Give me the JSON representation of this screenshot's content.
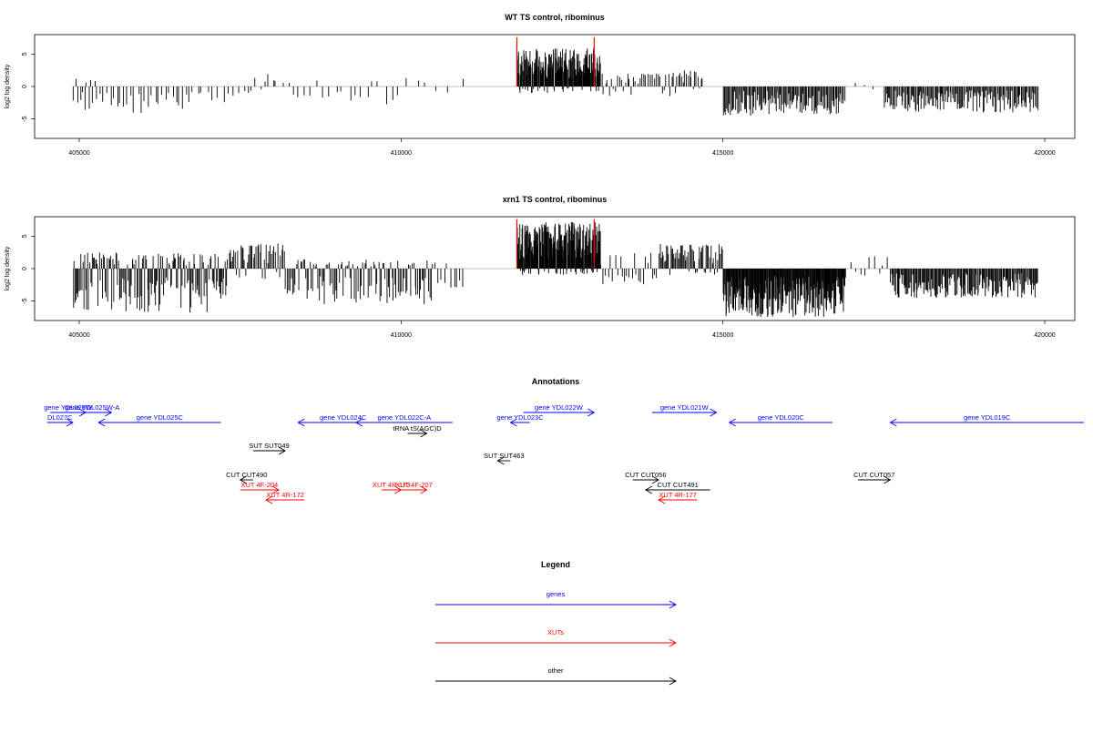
{
  "chart_data": [
    {
      "type": "bar",
      "title": "WT TS control, ribominus",
      "xlabel": "",
      "ylabel": "log2 log density",
      "xlim": [
        404500,
        420900
      ],
      "ylim": [
        -8,
        8
      ],
      "xticks": [
        405000,
        410000,
        415000,
        420000
      ],
      "yticks": [
        5,
        0,
        -5
      ],
      "xtick_labels": [
        "405000",
        "410000",
        "415000",
        "420000"
      ],
      "ytick_labels": [
        "5",
        "0",
        "-5"
      ],
      "markers": [
        411800,
        413000
      ],
      "marker_color": "#ff0000",
      "segments": [
        {
          "x0": 404900,
          "x1": 405300,
          "ymin": -4.0,
          "ymax": 1.2,
          "n": 12,
          "seed": 3
        },
        {
          "x0": 405300,
          "x1": 406800,
          "ymin": -4.2,
          "ymax": 0.0,
          "n": 28,
          "seed": 7
        },
        {
          "x0": 406800,
          "x1": 407600,
          "ymin": -2.5,
          "ymax": 0.0,
          "n": 10,
          "seed": 11
        },
        {
          "x0": 407600,
          "x1": 408100,
          "ymin": -1.5,
          "ymax": 2.6,
          "n": 8,
          "seed": 13
        },
        {
          "x0": 408100,
          "x1": 410000,
          "ymin": -3.0,
          "ymax": 1.0,
          "n": 20,
          "seed": 17
        },
        {
          "x0": 410000,
          "x1": 411000,
          "ymin": -1.0,
          "ymax": 1.5,
          "n": 6,
          "seed": 19
        },
        {
          "x0": 411800,
          "x1": 413100,
          "ymin": -1.0,
          "ymax": 6.0,
          "n": 180,
          "seed": 23
        },
        {
          "x0": 413100,
          "x1": 414200,
          "ymin": -1.5,
          "ymax": 2.0,
          "n": 35,
          "seed": 29
        },
        {
          "x0": 414200,
          "x1": 414700,
          "ymin": -1.0,
          "ymax": 2.5,
          "n": 20,
          "seed": 31
        },
        {
          "x0": 415000,
          "x1": 416900,
          "ymin": -4.5,
          "ymax": 0.0,
          "n": 120,
          "seed": 37
        },
        {
          "x0": 416900,
          "x1": 417500,
          "ymin": -0.5,
          "ymax": 0.8,
          "n": 3,
          "seed": 41
        },
        {
          "x0": 417500,
          "x1": 419900,
          "ymin": -4.0,
          "ymax": 0.0,
          "n": 150,
          "seed": 43
        }
      ]
    },
    {
      "type": "bar",
      "title": "xrn1 TS control, ribominus",
      "xlabel": "",
      "ylabel": "log2 log density",
      "xlim": [
        404500,
        420900
      ],
      "ylim": [
        -8,
        8
      ],
      "xticks": [
        405000,
        410000,
        415000,
        420000
      ],
      "yticks": [
        5,
        0,
        -5
      ],
      "xtick_labels": [
        "405000",
        "410000",
        "415000",
        "420000"
      ],
      "ytick_labels": [
        "5",
        "0",
        "-5"
      ],
      "markers": [
        411800,
        413000
      ],
      "marker_color": "#ff0000",
      "segments": [
        {
          "x0": 404900,
          "x1": 407300,
          "ymin": -6.8,
          "ymax": 2.5,
          "n": 160,
          "seed": 47
        },
        {
          "x0": 407300,
          "x1": 408200,
          "ymin": -2.0,
          "ymax": 4.0,
          "n": 45,
          "seed": 53
        },
        {
          "x0": 408200,
          "x1": 410500,
          "ymin": -5.5,
          "ymax": 1.5,
          "n": 110,
          "seed": 59
        },
        {
          "x0": 410500,
          "x1": 411000,
          "ymin": -3.0,
          "ymax": 1.0,
          "n": 10,
          "seed": 61
        },
        {
          "x0": 411800,
          "x1": 413100,
          "ymin": -1.0,
          "ymax": 7.2,
          "n": 210,
          "seed": 67
        },
        {
          "x0": 413100,
          "x1": 414000,
          "ymin": -2.5,
          "ymax": 2.5,
          "n": 25,
          "seed": 71
        },
        {
          "x0": 414000,
          "x1": 415000,
          "ymin": -1.0,
          "ymax": 3.8,
          "n": 60,
          "seed": 73
        },
        {
          "x0": 415000,
          "x1": 416900,
          "ymin": -7.5,
          "ymax": 0.0,
          "n": 220,
          "seed": 79
        },
        {
          "x0": 416900,
          "x1": 417600,
          "ymin": -2.0,
          "ymax": 2.0,
          "n": 10,
          "seed": 83
        },
        {
          "x0": 417600,
          "x1": 419900,
          "ymin": -4.5,
          "ymax": 0.0,
          "n": 170,
          "seed": 89
        }
      ]
    }
  ],
  "annotations": {
    "title": "Annotations",
    "colors": {
      "genes": "#0000ff",
      "XUTs": "#ff0000",
      "other": "#000000"
    },
    "items": [
      {
        "label": "DL027C",
        "cls": "genes",
        "dir": "right",
        "start": 404500,
        "end": 404900,
        "row": 1
      },
      {
        "label": "gene YDL026W",
        "cls": "genes",
        "dir": "right",
        "start": 404550,
        "end": 405100,
        "row": 0
      },
      {
        "label": "gene YDL025W-A",
        "cls": "genes",
        "dir": "right",
        "start": 404900,
        "end": 405500,
        "row": 0
      },
      {
        "label": "gene YDL025C",
        "cls": "genes",
        "dir": "left",
        "start": 405300,
        "end": 407200,
        "row": 1
      },
      {
        "label": "gene YDL024C",
        "cls": "genes",
        "dir": "left",
        "start": 408400,
        "end": 409800,
        "row": 1
      },
      {
        "label": "gene YDL022C-A",
        "cls": "genes",
        "dir": "left",
        "start": 409300,
        "end": 410800,
        "row": 1
      },
      {
        "label": "tRNA tS(AGC)D",
        "cls": "other",
        "dir": "right",
        "start": 410100,
        "end": 410400,
        "row": 2
      },
      {
        "label": "gene YDL023C",
        "cls": "genes",
        "dir": "left",
        "start": 411700,
        "end": 412000,
        "row": 1
      },
      {
        "label": "gene YDL022W",
        "cls": "genes",
        "dir": "right",
        "start": 411900,
        "end": 413000,
        "row": 0
      },
      {
        "label": "gene YDL021W",
        "cls": "genes",
        "dir": "right",
        "start": 413900,
        "end": 414900,
        "row": 0
      },
      {
        "label": "gene YDL020C",
        "cls": "genes",
        "dir": "left",
        "start": 415100,
        "end": 416700,
        "row": 1
      },
      {
        "label": "gene YDL019C",
        "cls": "genes",
        "dir": "left",
        "start": 417600,
        "end": 420900,
        "row": 1
      },
      {
        "label": "SUT SUT049",
        "cls": "other",
        "dir": "right",
        "start": 407700,
        "end": 408200,
        "row": 3
      },
      {
        "label": "SUT SUT463",
        "cls": "other",
        "dir": "left",
        "start": 411500,
        "end": 411700,
        "row": 4
      },
      {
        "label": "CUT CUT490",
        "cls": "other",
        "dir": "left",
        "start": 407500,
        "end": 407700,
        "row": 5
      },
      {
        "label": "XUT 4F-204",
        "cls": "XUTs",
        "dir": "right",
        "start": 407500,
        "end": 408100,
        "row": 6
      },
      {
        "label": "XUT 4R-172",
        "cls": "XUTs",
        "dir": "left",
        "start": 407900,
        "end": 408500,
        "row": 7
      },
      {
        "label": "XUT 4R-173",
        "cls": "XUTs",
        "dir": "right",
        "start": 409700,
        "end": 410000,
        "row": 6
      },
      {
        "label": "XUT 4F-207",
        "cls": "XUTs",
        "dir": "right",
        "start": 410000,
        "end": 410400,
        "row": 6
      },
      {
        "label": "CUT CUT056",
        "cls": "other",
        "dir": "right",
        "start": 413600,
        "end": 414000,
        "row": 5
      },
      {
        "label": "CUT CUT491",
        "cls": "other",
        "dir": "left",
        "start": 413800,
        "end": 414800,
        "row": 6
      },
      {
        "label": "XUT 4R-177",
        "cls": "XUTs",
        "dir": "left",
        "start": 414000,
        "end": 414600,
        "row": 7
      },
      {
        "label": "CUT CUT057",
        "cls": "other",
        "dir": "right",
        "start": 417100,
        "end": 417600,
        "row": 5
      }
    ]
  },
  "legend": {
    "title": "Legend",
    "items": [
      {
        "label": "genes",
        "color": "#0000ff"
      },
      {
        "label": "XUTs",
        "color": "#ff0000"
      },
      {
        "label": "other",
        "color": "#000000"
      }
    ]
  }
}
